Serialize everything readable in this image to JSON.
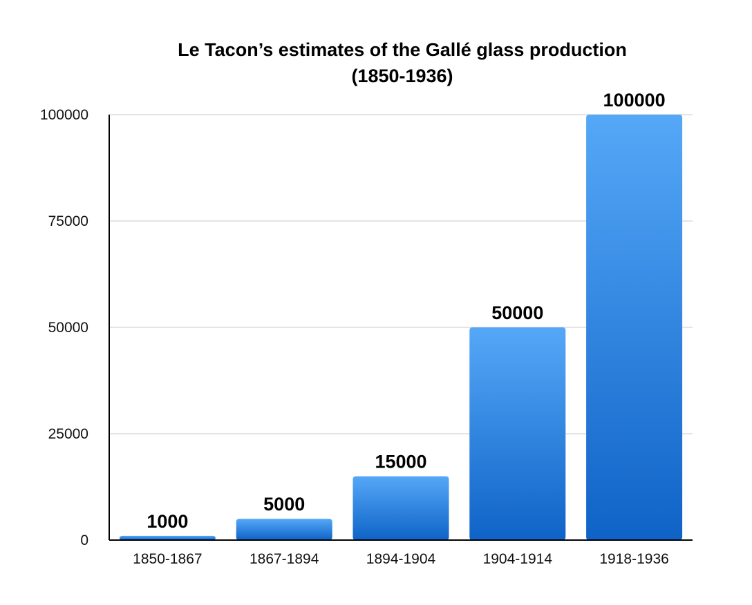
{
  "chart_data": {
    "type": "bar",
    "title": "Le Tacon’s estimates of the Gallé glass production",
    "subtitle": "(1850-1936)",
    "xlabel": "",
    "ylabel": "",
    "categories": [
      "1850-1867",
      "1867-1894",
      "1894-1904",
      "1904-1914",
      "1918-1936"
    ],
    "values": [
      1000,
      5000,
      15000,
      50000,
      100000
    ],
    "value_labels": [
      "1000",
      "5000",
      "15000",
      "50000",
      "100000"
    ],
    "ylim": [
      0,
      100000
    ],
    "yticks": [
      0,
      25000,
      50000,
      75000,
      100000
    ],
    "ytick_labels": [
      "0",
      "25000",
      "50000",
      "75000",
      "100000"
    ],
    "grid": true,
    "legend": "none",
    "colors": {
      "bar_top": "#55a8f7",
      "bar_bottom": "#0f63c7",
      "grid": "#c8c8c8",
      "axis": "#000000"
    }
  }
}
